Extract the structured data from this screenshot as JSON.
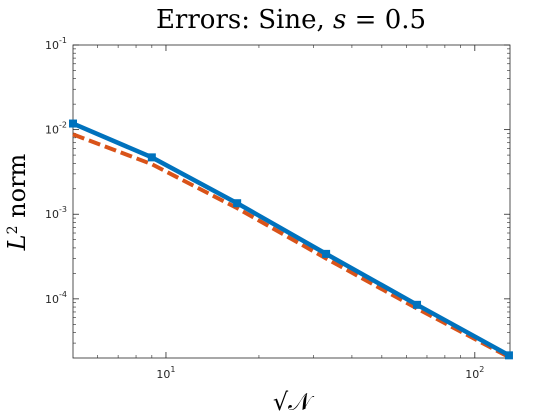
{
  "chart_data": {
    "type": "line",
    "title": "Errors: Sine, s = 0.5",
    "title_parts": {
      "prefix": "Errors: Sine, ",
      "var": "s",
      "suffix": " = 0.5"
    },
    "xlabel": "√𝒩",
    "ylabel": "L² norm",
    "ylabel_parts": {
      "var": "L",
      "sup": "2",
      "word": " norm"
    },
    "xscale": "log",
    "yscale": "log",
    "xlim": [
      5,
      130
    ],
    "ylim": [
      2e-05,
      0.1
    ],
    "x_ticks": [
      {
        "value": 10,
        "base": "10",
        "exp": "1"
      },
      {
        "value": 100,
        "base": "10",
        "exp": "2"
      }
    ],
    "y_ticks": [
      {
        "value": 0.1,
        "base": "10",
        "exp": "-1"
      },
      {
        "value": 0.01,
        "base": "10",
        "exp": "-2"
      },
      {
        "value": 0.001,
        "base": "10",
        "exp": "-3"
      },
      {
        "value": 0.0001,
        "base": "10",
        "exp": "-4"
      }
    ],
    "grid": false,
    "legend": "none",
    "series": [
      {
        "color": "#0072bd",
        "style": "solid",
        "marker": "square",
        "x": [
          5,
          9,
          17,
          33,
          65,
          129
        ],
        "y": [
          0.0118,
          0.0047,
          0.00135,
          0.00034,
          8.5e-05,
          2.15e-05
        ]
      },
      {
        "color": "#d95319",
        "style": "dashed",
        "marker": "none",
        "x": [
          5,
          9,
          17,
          33,
          65,
          129
        ],
        "y": [
          0.0088,
          0.0039,
          0.00118,
          0.0003,
          7.7e-05,
          2.05e-05
        ]
      }
    ]
  }
}
